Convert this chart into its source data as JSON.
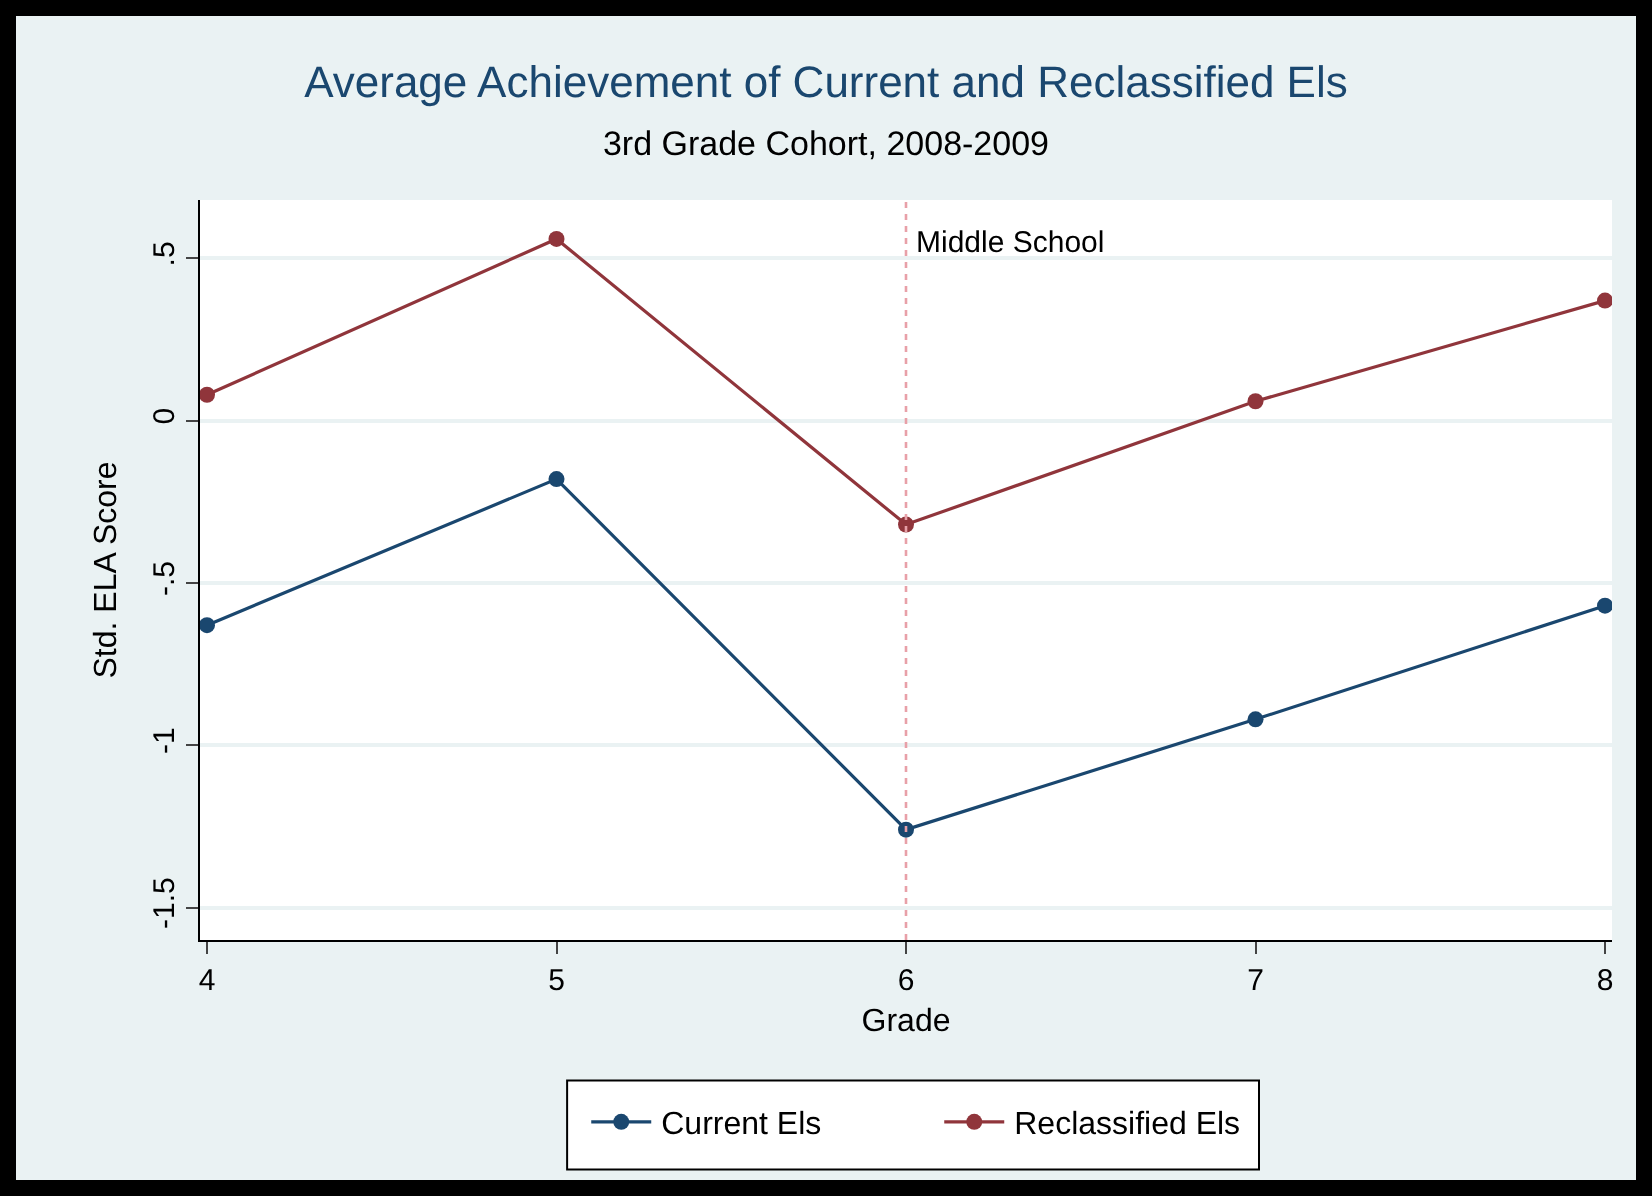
{
  "chart_data": {
    "type": "line",
    "title": "Average Achievement of Current and Reclassified Els",
    "subtitle": "3rd Grade Cohort, 2008-2009",
    "xlabel": "Grade",
    "ylabel": "Std. ELA Score",
    "x": [
      4,
      5,
      6,
      7,
      8
    ],
    "series": [
      {
        "name": "Current Els",
        "color": "#1a476f",
        "values": [
          -0.63,
          -0.18,
          -1.26,
          -0.92,
          -0.57
        ]
      },
      {
        "name": "Reclassified Els",
        "color": "#90353b",
        "values": [
          0.08,
          0.56,
          -0.32,
          0.06,
          0.37
        ]
      }
    ],
    "xlim": [
      3.98,
      8.02
    ],
    "xticks": [
      4,
      5,
      6,
      7,
      8
    ],
    "ylim": [
      -1.6,
      0.68
    ],
    "yticks": [
      {
        "value": -1.5,
        "label": "-1.5"
      },
      {
        "value": -1,
        "label": "-1"
      },
      {
        "value": -0.5,
        "label": "-.5"
      },
      {
        "value": 0,
        "label": "0"
      },
      {
        "value": 0.5,
        "label": ".5"
      }
    ],
    "ref_lines": [
      {
        "axis": "x",
        "value": 6,
        "label": "Middle School",
        "color": "#e8a0a8",
        "line_style": "dotted"
      }
    ],
    "grid": "y",
    "legend": "bottom",
    "marker": "circle",
    "line_style": "solid"
  }
}
